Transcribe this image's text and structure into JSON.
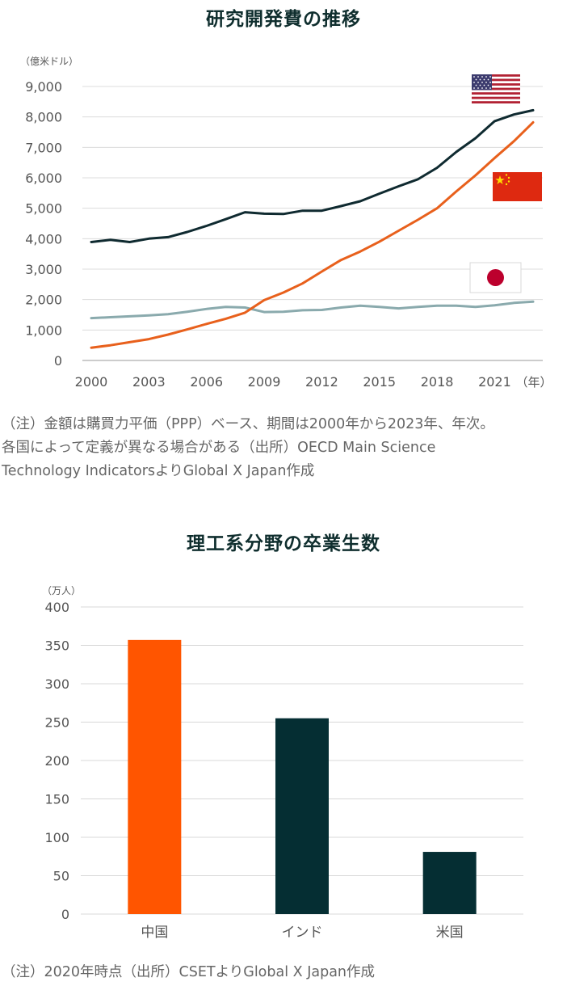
{
  "chart_data": [
    {
      "type": "line",
      "title": "研究開発費の推移",
      "ylabel": "（億米ドル）",
      "xlabel": "（年）",
      "ylim": [
        0,
        9000
      ],
      "xlim": [
        2000,
        2023
      ],
      "yticks": [
        "0",
        "1,000",
        "2,000",
        "3,000",
        "4,000",
        "5,000",
        "6,000",
        "7,000",
        "8,000",
        "9,000"
      ],
      "xticks": [
        "2000",
        "2003",
        "2006",
        "2009",
        "2012",
        "2015",
        "2018",
        "2021"
      ],
      "x": [
        2000,
        2001,
        2002,
        2003,
        2004,
        2005,
        2006,
        2007,
        2008,
        2009,
        2010,
        2011,
        2012,
        2013,
        2014,
        2015,
        2016,
        2017,
        2018,
        2019,
        2020,
        2021,
        2022,
        2023
      ],
      "series": [
        {
          "name": "米国",
          "flag": "us",
          "color": "#0f2a30",
          "values": [
            3890,
            3960,
            3890,
            4000,
            4050,
            4220,
            4420,
            4640,
            4870,
            4820,
            4810,
            4920,
            4920,
            5070,
            5230,
            5480,
            5720,
            5950,
            6330,
            6850,
            7300,
            7860,
            8080,
            8220
          ]
        },
        {
          "name": "中国",
          "flag": "cn",
          "color": "#e8601c",
          "values": [
            420,
            500,
            600,
            700,
            850,
            1020,
            1200,
            1370,
            1570,
            1980,
            2230,
            2530,
            2920,
            3300,
            3580,
            3900,
            4260,
            4620,
            5000,
            5550,
            6080,
            6650,
            7200,
            7820
          ]
        },
        {
          "name": "日本",
          "flag": "jp",
          "color": "#8aaaad",
          "values": [
            1390,
            1420,
            1450,
            1480,
            1520,
            1600,
            1690,
            1760,
            1740,
            1590,
            1600,
            1650,
            1660,
            1740,
            1800,
            1760,
            1710,
            1760,
            1800,
            1800,
            1760,
            1810,
            1890,
            1930
          ]
        }
      ],
      "note_lines": [
        "（注）金額は購買力平価（PPP）ベース、期間は2000年から2023年、年次。",
        "各国によって定義が異なる場合がある（出所）OECD Main Science",
        "Technology IndicatorsよりGlobal X Japan作成"
      ]
    },
    {
      "type": "bar",
      "title": "理工系分野の卒業生数",
      "ylabel": "（万人）",
      "ylim": [
        0,
        400
      ],
      "yticks": [
        "0",
        "50",
        "100",
        "150",
        "200",
        "250",
        "300",
        "350",
        "400"
      ],
      "categories": [
        "中国",
        "インド",
        "米国"
      ],
      "values": [
        357,
        255,
        81
      ],
      "colors": [
        "#ff5500",
        "#052e33",
        "#052e33"
      ],
      "note_lines": [
        "（注）2020年時点（出所）CSETよりGlobal X Japan作成"
      ]
    }
  ]
}
